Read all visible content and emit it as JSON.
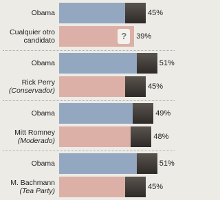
{
  "chart_data": {
    "type": "bar",
    "groups": [
      {
        "bars": [
          {
            "label": "Obama",
            "value": 45,
            "value_label": "45%",
            "color": "#94a7c0"
          },
          {
            "label": "Cualquier otro candidato",
            "value": 39,
            "value_label": "39%",
            "color": "#dcb0a6",
            "icon_text": "?"
          }
        ]
      },
      {
        "bars": [
          {
            "label": "Obama",
            "value": 51,
            "value_label": "51%",
            "color": "#94a7c0"
          },
          {
            "label": "Rick Perry",
            "sublabel": "(Conservador)",
            "value": 45,
            "value_label": "45%",
            "color": "#dcb0a6"
          }
        ]
      },
      {
        "bars": [
          {
            "label": "Obama",
            "value": 49,
            "value_label": "49%",
            "color": "#94a7c0"
          },
          {
            "label": "Mitt Romney",
            "sublabel": "(Moderado)",
            "value": 48,
            "value_label": "48%",
            "color": "#dcb0a6"
          }
        ]
      },
      {
        "bars": [
          {
            "label": "Obama",
            "value": 51,
            "value_label": "51%",
            "color": "#94a7c0"
          },
          {
            "label": "M. Bachmann",
            "sublabel": "(Tea Party)",
            "value": 45,
            "value_label": "45%",
            "color": "#dcb0a6"
          }
        ]
      }
    ]
  }
}
